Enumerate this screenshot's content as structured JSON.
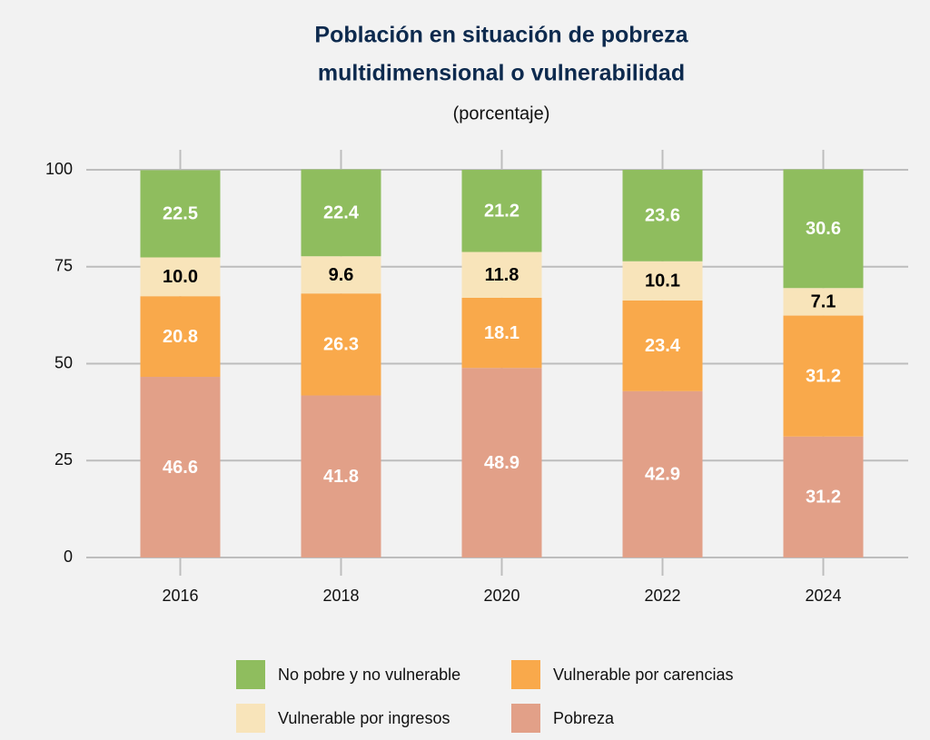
{
  "chart_data": {
    "type": "stacked_bar",
    "title": [
      "Población en situación de pobreza",
      "multidimensional o vulnerabilidad"
    ],
    "subtitle": "(porcentaje)",
    "categories": [
      "2016",
      "2018",
      "2020",
      "2022",
      "2024"
    ],
    "series": [
      {
        "name": "Pobreza",
        "color": "#e2a088",
        "label_color": "#ffffff",
        "values": [
          46.6,
          41.8,
          48.9,
          42.9,
          31.2
        ],
        "value_labels": [
          "46.6",
          "41.8",
          "48.9",
          "42.9",
          "31.2"
        ]
      },
      {
        "name": "Vulnerable por carencias",
        "color": "#f9a94b",
        "label_color": "#ffffff",
        "values": [
          20.8,
          26.3,
          18.1,
          23.4,
          31.2
        ],
        "value_labels": [
          "20.8",
          "26.3",
          "18.1",
          "23.4",
          "31.2"
        ]
      },
      {
        "name": "Vulnerable por ingresos",
        "color": "#f8e4ba",
        "label_color": "#000000",
        "values": [
          10.0,
          9.6,
          11.8,
          10.1,
          7.1
        ],
        "value_labels": [
          "10.0",
          "9.6",
          "11.8",
          "10.1",
          "7.1"
        ]
      },
      {
        "name": "No pobre y no vulnerable",
        "color": "#8fbd5e",
        "label_color": "#ffffff",
        "values": [
          22.5,
          22.4,
          21.2,
          23.6,
          30.6
        ],
        "value_labels": [
          "22.5",
          "22.4",
          "21.2",
          "23.6",
          "30.6"
        ]
      }
    ],
    "ylim": [
      0,
      100
    ],
    "yticks": [
      0,
      25,
      50,
      75,
      100
    ],
    "grid": true
  }
}
